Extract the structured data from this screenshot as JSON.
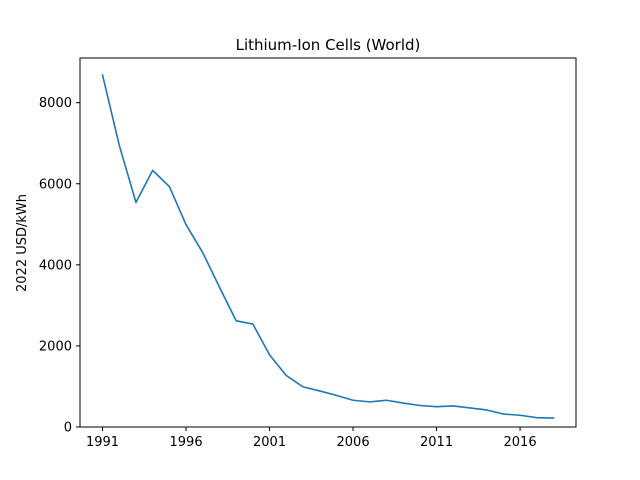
{
  "chart_data": {
    "type": "line",
    "title": "Lithium-Ion Cells (World)",
    "xlabel": "",
    "ylabel": "2022 USD/kWh",
    "xlim": [
      1989.65,
      2019.35
    ],
    "ylim": [
      0,
      9102
    ],
    "x_ticks": [
      1991,
      1996,
      2001,
      2006,
      2011,
      2016
    ],
    "y_ticks": [
      0,
      2000,
      4000,
      6000,
      8000
    ],
    "grid": false,
    "legend": "none",
    "series": [
      {
        "color": "#1f77b4",
        "x": [
          1991,
          1992,
          1993,
          1994,
          1995,
          1996,
          1997,
          1998,
          1999,
          2000,
          2001,
          2002,
          2003,
          2004,
          2005,
          2006,
          2007,
          2008,
          2009,
          2010,
          2011,
          2012,
          2013,
          2014,
          2015,
          2016,
          2017,
          2018
        ],
        "y": [
          8680,
          6950,
          5540,
          6330,
          5930,
          4990,
          4300,
          3450,
          2620,
          2540,
          1780,
          1270,
          990,
          890,
          780,
          660,
          620,
          660,
          590,
          530,
          500,
          520,
          470,
          420,
          320,
          290,
          230,
          220
        ]
      }
    ]
  }
}
